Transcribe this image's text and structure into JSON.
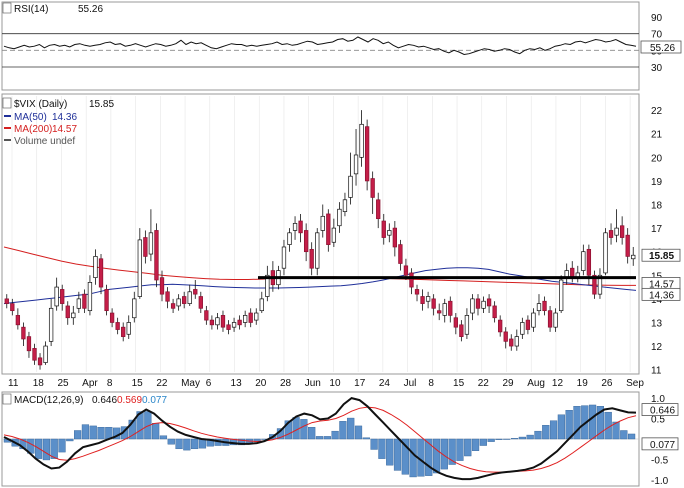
{
  "chart_data": [
    {
      "type": "line",
      "panel": "rsi",
      "label": "RSI(14)",
      "current_value": "55.26",
      "yticks": [
        "90",
        "70",
        "50",
        "30"
      ],
      "ylim": [
        30,
        90
      ],
      "reference_lines": [
        70,
        50,
        30
      ],
      "values": [
        55,
        53,
        52,
        54,
        56,
        54,
        55,
        57,
        53,
        56,
        57,
        55,
        56,
        54,
        57,
        58,
        56,
        55,
        56,
        57,
        59,
        60,
        57,
        58,
        55,
        56,
        58,
        56,
        54,
        56,
        58,
        57,
        55,
        56,
        58,
        62,
        57,
        60,
        58,
        59,
        56,
        53,
        52,
        54,
        56,
        58,
        57,
        57,
        55,
        56,
        55,
        56,
        57,
        58,
        60,
        57,
        58,
        56,
        57,
        59,
        61,
        60,
        57,
        58,
        59,
        60,
        63,
        64,
        61,
        62,
        66,
        63,
        60,
        64,
        62,
        58,
        60,
        56,
        53,
        55,
        57,
        56,
        54,
        55,
        53,
        51,
        52,
        49,
        47,
        50,
        48,
        45,
        46,
        48,
        50,
        52,
        51,
        49,
        50,
        52,
        51,
        48,
        46,
        50,
        52,
        51,
        53,
        50,
        52,
        55,
        56,
        58,
        57,
        60,
        61,
        59,
        61,
        63,
        62,
        60,
        61,
        63,
        60,
        57,
        56,
        55
      ]
    },
    {
      "type": "candlestick",
      "panel": "price",
      "symbol_label": "$VIX (Daily)",
      "last": "15.85",
      "legend": [
        {
          "label": "MA(50)",
          "value": "14.36",
          "color": "#1f2f99"
        },
        {
          "label": "MA(200)",
          "value": "14.57",
          "color": "#d41f1f"
        },
        {
          "label": "Volume undef",
          "value": "",
          "color": "#555555"
        }
      ],
      "ylim": [
        10.9,
        22.6
      ],
      "yticks": [
        "22",
        "21",
        "20",
        "19",
        "18",
        "17",
        "16",
        "15",
        "14",
        "13",
        "12",
        "11"
      ],
      "price_labels": [
        {
          "text": "15.85",
          "value": 15.85
        },
        {
          "text": "14.57",
          "value": 14.57
        },
        {
          "text": "14.36",
          "value": 14.36
        }
      ],
      "candles": [
        [
          14.0,
          13.8,
          14.2,
          13.6
        ],
        [
          13.8,
          13.5,
          14.0,
          13.3
        ],
        [
          13.3,
          12.9,
          13.6,
          12.7
        ],
        [
          12.8,
          12.3,
          13.0,
          12.0
        ],
        [
          12.4,
          11.8,
          12.6,
          11.5
        ],
        [
          11.9,
          11.4,
          12.1,
          11.2
        ],
        [
          11.5,
          11.2,
          11.7,
          11.0
        ],
        [
          11.3,
          12.0,
          12.2,
          11.2
        ],
        [
          12.2,
          13.6,
          14.0,
          12.0
        ],
        [
          13.7,
          14.5,
          14.9,
          13.5
        ],
        [
          14.4,
          13.8,
          14.6,
          13.5
        ],
        [
          13.7,
          13.2,
          13.9,
          12.9
        ],
        [
          13.2,
          13.4,
          13.7,
          12.9
        ],
        [
          13.6,
          14.0,
          14.3,
          13.4
        ],
        [
          14.2,
          13.6,
          14.4,
          13.4
        ],
        [
          13.5,
          14.7,
          15.0,
          13.3
        ],
        [
          14.9,
          15.8,
          16.1,
          14.6
        ],
        [
          15.7,
          14.5,
          15.9,
          14.2
        ],
        [
          14.4,
          13.5,
          14.6,
          13.3
        ],
        [
          13.4,
          13.0,
          13.6,
          12.8
        ],
        [
          13.0,
          12.7,
          13.2,
          12.5
        ],
        [
          12.8,
          12.4,
          13.0,
          12.2
        ],
        [
          12.5,
          13.0,
          13.3,
          12.3
        ],
        [
          13.2,
          14.0,
          14.3,
          13.0
        ],
        [
          14.1,
          16.5,
          17.0,
          14.0
        ],
        [
          16.6,
          15.8,
          16.9,
          15.5
        ],
        [
          15.9,
          16.8,
          17.8,
          15.6
        ],
        [
          16.9,
          14.8,
          17.2,
          14.5
        ],
        [
          14.9,
          14.2,
          15.2,
          13.9
        ],
        [
          14.3,
          13.9,
          14.5,
          13.6
        ],
        [
          13.8,
          13.6,
          14.0,
          13.4
        ],
        [
          13.7,
          14.0,
          14.2,
          13.5
        ],
        [
          14.1,
          13.8,
          14.3,
          13.6
        ],
        [
          13.8,
          14.3,
          14.6,
          13.7
        ],
        [
          14.4,
          14.2,
          14.8,
          14.0
        ],
        [
          14.1,
          13.6,
          14.3,
          13.4
        ],
        [
          13.5,
          13.1,
          13.7,
          12.9
        ],
        [
          13.1,
          12.9,
          13.3,
          12.7
        ],
        [
          12.9,
          13.2,
          13.4,
          12.7
        ],
        [
          13.3,
          12.8,
          13.5,
          12.6
        ],
        [
          12.9,
          12.7,
          13.1,
          12.5
        ],
        [
          12.8,
          13.0,
          13.2,
          12.6
        ],
        [
          13.1,
          12.9,
          13.3,
          12.7
        ],
        [
          13.0,
          13.3,
          13.5,
          12.8
        ],
        [
          13.4,
          13.0,
          13.6,
          12.8
        ],
        [
          13.1,
          13.4,
          13.6,
          12.9
        ],
        [
          13.5,
          14.0,
          14.3,
          13.4
        ],
        [
          14.1,
          15.0,
          15.4,
          13.9
        ],
        [
          15.2,
          14.6,
          15.6,
          14.3
        ],
        [
          14.6,
          15.2,
          15.4,
          14.4
        ],
        [
          15.3,
          16.2,
          16.5,
          15.0
        ],
        [
          16.3,
          16.8,
          17.0,
          16.0
        ],
        [
          16.9,
          17.2,
          17.5,
          16.5
        ],
        [
          17.3,
          16.8,
          17.6,
          16.4
        ],
        [
          16.9,
          16.0,
          17.2,
          15.6
        ],
        [
          16.1,
          15.3,
          16.4,
          15.0
        ],
        [
          15.3,
          16.8,
          17.0,
          15.0
        ],
        [
          16.9,
          17.5,
          18.0,
          16.6
        ],
        [
          17.6,
          16.3,
          17.8,
          16.0
        ],
        [
          16.4,
          17.0,
          17.4,
          16.2
        ],
        [
          17.1,
          17.8,
          18.1,
          16.8
        ],
        [
          17.7,
          18.2,
          18.5,
          17.5
        ],
        [
          18.3,
          19.2,
          20.2,
          18.0
        ],
        [
          19.3,
          20.1,
          21.2,
          18.8
        ],
        [
          20.0,
          21.4,
          22.0,
          19.6
        ],
        [
          21.3,
          19.0,
          21.6,
          18.6
        ],
        [
          19.1,
          18.3,
          19.4,
          17.6
        ],
        [
          18.2,
          17.4,
          18.5,
          17.0
        ],
        [
          17.3,
          16.6,
          17.6,
          16.3
        ],
        [
          16.7,
          16.9,
          17.2,
          16.4
        ],
        [
          17.0,
          16.2,
          17.3,
          15.8
        ],
        [
          16.3,
          15.5,
          16.5,
          15.2
        ],
        [
          15.4,
          15.0,
          15.7,
          14.8
        ],
        [
          15.1,
          14.5,
          15.3,
          14.2
        ],
        [
          14.4,
          14.2,
          14.6,
          13.9
        ],
        [
          14.1,
          13.8,
          14.4,
          13.5
        ],
        [
          13.9,
          14.1,
          14.3,
          13.6
        ],
        [
          14.0,
          13.6,
          14.2,
          13.3
        ],
        [
          13.5,
          13.4,
          13.8,
          13.1
        ],
        [
          13.3,
          13.8,
          14.0,
          13.0
        ],
        [
          13.9,
          13.3,
          14.1,
          13.0
        ],
        [
          13.2,
          12.8,
          13.4,
          12.5
        ],
        [
          12.9,
          12.4,
          13.1,
          12.2
        ],
        [
          12.5,
          13.3,
          13.6,
          12.3
        ],
        [
          13.4,
          14.0,
          14.2,
          13.1
        ],
        [
          14.0,
          13.6,
          14.2,
          13.3
        ],
        [
          13.6,
          13.9,
          14.1,
          13.4
        ],
        [
          14.0,
          13.7,
          14.2,
          13.4
        ],
        [
          13.7,
          13.2,
          13.9,
          13.0
        ],
        [
          13.1,
          12.6,
          13.3,
          12.4
        ],
        [
          12.6,
          12.2,
          12.8,
          11.9
        ],
        [
          12.3,
          12.0,
          12.5,
          11.8
        ],
        [
          12.0,
          12.4,
          12.7,
          11.8
        ],
        [
          12.5,
          13.0,
          13.2,
          12.3
        ],
        [
          13.1,
          12.7,
          13.3,
          12.5
        ],
        [
          12.8,
          13.4,
          13.6,
          12.6
        ],
        [
          13.5,
          13.8,
          14.2,
          13.3
        ],
        [
          13.9,
          13.5,
          14.1,
          13.3
        ],
        [
          13.5,
          12.8,
          13.7,
          12.6
        ],
        [
          12.8,
          13.4,
          13.6,
          12.6
        ],
        [
          13.5,
          14.8,
          15.0,
          13.4
        ],
        [
          14.9,
          15.2,
          15.5,
          14.6
        ],
        [
          15.3,
          14.9,
          15.6,
          14.7
        ],
        [
          14.9,
          15.1,
          15.4,
          14.7
        ],
        [
          15.2,
          16.0,
          16.3,
          15.0
        ],
        [
          16.1,
          15.0,
          16.3,
          14.6
        ],
        [
          15.0,
          14.2,
          15.2,
          14.0
        ],
        [
          14.2,
          15.0,
          15.3,
          14.0
        ],
        [
          15.1,
          16.8,
          17.0,
          15.0
        ],
        [
          16.9,
          16.6,
          17.2,
          16.3
        ],
        [
          16.7,
          17.0,
          17.8,
          16.4
        ],
        [
          17.1,
          16.6,
          17.5,
          16.3
        ],
        [
          16.7,
          15.8,
          17.0,
          15.5
        ],
        [
          15.7,
          15.85,
          16.2,
          15.4
        ]
      ],
      "ma50": [
        13.8,
        13.85,
        13.9,
        13.95,
        14.0,
        14.05,
        14.1,
        14.15,
        14.2,
        14.3,
        14.4,
        14.45,
        14.5,
        14.55,
        14.6,
        14.6,
        14.62,
        14.6,
        14.58,
        14.55,
        14.52,
        14.5,
        14.48,
        14.47,
        14.46,
        14.46,
        14.46,
        14.47,
        14.48,
        14.5,
        14.52,
        14.54,
        14.56,
        14.6,
        14.65,
        14.72,
        14.8,
        14.9,
        15.0,
        15.1,
        15.2,
        15.25,
        15.3,
        15.32,
        15.32,
        15.3,
        15.25,
        15.15,
        15.05,
        14.98,
        14.9,
        14.82,
        14.75,
        14.7,
        14.65,
        14.6,
        14.55,
        14.5,
        14.45,
        14.4,
        14.36
      ],
      "ma200": [
        16.2,
        16.05,
        15.9,
        15.75,
        15.6,
        15.48,
        15.38,
        15.3,
        15.22,
        15.15,
        15.08,
        15.0,
        14.95,
        14.9,
        14.86,
        14.83,
        14.82,
        14.82,
        14.84,
        14.87,
        14.9,
        14.92,
        14.93,
        14.93,
        14.92,
        14.9,
        14.88,
        14.86,
        14.84,
        14.82,
        14.8,
        14.78,
        14.76,
        14.74,
        14.72,
        14.7,
        14.68,
        14.66,
        14.64,
        14.62,
        14.6,
        14.59,
        14.58,
        14.57,
        14.57
      ],
      "support_level": 14.9,
      "x_ticks": [
        "11",
        "18",
        "25",
        "Apr",
        "8",
        "15",
        "22",
        "May",
        "6",
        "13",
        "20",
        "28",
        "Jun",
        "10",
        "17",
        "24",
        "Jul",
        "8",
        "15",
        "22",
        "29",
        "Aug",
        "12",
        "19",
        "26",
        "Sep"
      ]
    },
    {
      "type": "line",
      "panel": "macd",
      "label": "MACD(12,26,9)",
      "values_text": [
        "0.646",
        "0.569",
        "0.077"
      ],
      "series_colors": [
        "#111111",
        "#e02020",
        "#2a86c9"
      ],
      "yticks": [
        "1.0",
        "0.5",
        "-0.5",
        "-1.0"
      ],
      "ylim": [
        -1.1,
        1.1
      ],
      "macd": [
        0.05,
        -0.05,
        -0.15,
        -0.3,
        -0.48,
        -0.62,
        -0.72,
        -0.7,
        -0.55,
        -0.35,
        -0.2,
        -0.15,
        -0.1,
        -0.02,
        0.05,
        0.15,
        0.35,
        0.6,
        0.72,
        0.62,
        0.45,
        0.3,
        0.18,
        0.1,
        0.05,
        0.0,
        -0.02,
        -0.05,
        -0.08,
        -0.1,
        -0.12,
        -0.12,
        -0.1,
        -0.05,
        0.05,
        0.2,
        0.4,
        0.55,
        0.62,
        0.58,
        0.48,
        0.5,
        0.62,
        0.85,
        1.0,
        0.95,
        0.8,
        0.6,
        0.4,
        0.2,
        0.0,
        -0.2,
        -0.4,
        -0.55,
        -0.7,
        -0.82,
        -0.9,
        -0.95,
        -0.98,
        -0.98,
        -0.95,
        -0.9,
        -0.85,
        -0.82,
        -0.8,
        -0.78,
        -0.75,
        -0.7,
        -0.6,
        -0.45,
        -0.3,
        -0.1,
        0.1,
        0.3,
        0.45,
        0.6,
        0.72,
        0.75,
        0.7,
        0.65,
        0.646
      ],
      "signal": [
        0.1,
        0.06,
        0.0,
        -0.08,
        -0.18,
        -0.3,
        -0.42,
        -0.5,
        -0.52,
        -0.48,
        -0.42,
        -0.35,
        -0.28,
        -0.2,
        -0.12,
        -0.04,
        0.06,
        0.18,
        0.3,
        0.38,
        0.4,
        0.38,
        0.33,
        0.27,
        0.2,
        0.14,
        0.09,
        0.05,
        0.02,
        -0.01,
        -0.03,
        -0.05,
        -0.06,
        -0.05,
        -0.02,
        0.04,
        0.12,
        0.22,
        0.32,
        0.4,
        0.44,
        0.46,
        0.5,
        0.58,
        0.68,
        0.75,
        0.78,
        0.76,
        0.7,
        0.6,
        0.48,
        0.34,
        0.18,
        0.02,
        -0.14,
        -0.3,
        -0.44,
        -0.56,
        -0.65,
        -0.72,
        -0.77,
        -0.8,
        -0.81,
        -0.81,
        -0.8,
        -0.79,
        -0.78,
        -0.76,
        -0.72,
        -0.66,
        -0.58,
        -0.47,
        -0.34,
        -0.2,
        -0.06,
        0.08,
        0.22,
        0.34,
        0.44,
        0.52,
        0.569
      ]
    }
  ]
}
